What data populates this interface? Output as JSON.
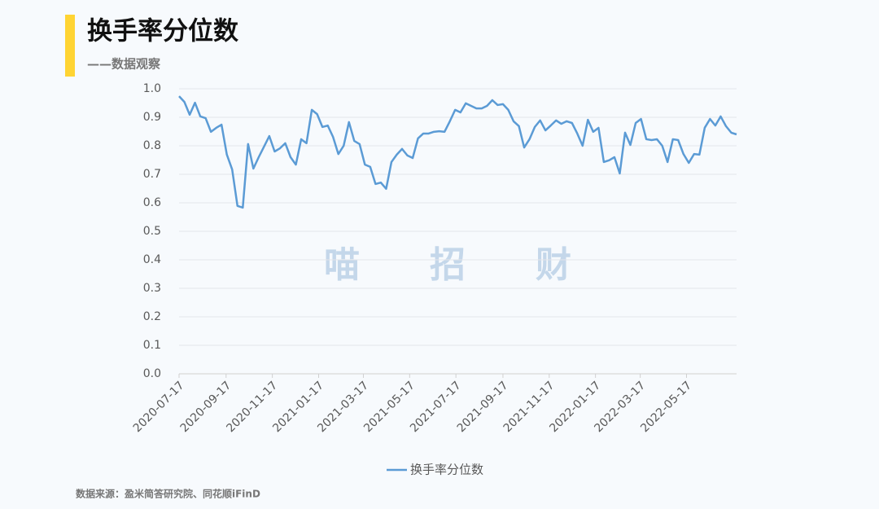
{
  "chart_data": {
    "type": "line",
    "title": "换手率分位数",
    "subtitle": "——数据观察",
    "source": "数据来源：盈米简答研究院、同花顺iFinD",
    "watermark": [
      "喵",
      "招",
      "财"
    ],
    "x": [
      "2020-07-17",
      "2020-07-24",
      "2020-07-31",
      "2020-08-07",
      "2020-08-14",
      "2020-08-21",
      "2020-08-28",
      "2020-09-04",
      "2020-09-11",
      "2020-09-18",
      "2020-09-25",
      "2020-10-02",
      "2020-10-09",
      "2020-10-16",
      "2020-10-23",
      "2020-10-30",
      "2020-11-06",
      "2020-11-13",
      "2020-11-20",
      "2020-11-27",
      "2020-12-04",
      "2020-12-11",
      "2020-12-18",
      "2020-12-25",
      "2021-01-01",
      "2021-01-08",
      "2021-01-15",
      "2021-01-22",
      "2021-01-29",
      "2021-02-05",
      "2021-02-12",
      "2021-02-19",
      "2021-02-26",
      "2021-03-05",
      "2021-03-12",
      "2021-03-19",
      "2021-03-26",
      "2021-04-02",
      "2021-04-09",
      "2021-04-16",
      "2021-04-23",
      "2021-04-30",
      "2021-05-07",
      "2021-05-14",
      "2021-05-21",
      "2021-05-28",
      "2021-06-04",
      "2021-06-11",
      "2021-06-18",
      "2021-06-25",
      "2021-07-02",
      "2021-07-09",
      "2021-07-16",
      "2021-07-23",
      "2021-07-30",
      "2021-08-06",
      "2021-08-13",
      "2021-08-20",
      "2021-08-27",
      "2021-09-03",
      "2021-09-10",
      "2021-09-17",
      "2021-09-24",
      "2021-10-01",
      "2021-10-08",
      "2021-10-15",
      "2021-10-22",
      "2021-10-29",
      "2021-11-05",
      "2021-11-12",
      "2021-11-19",
      "2021-11-26",
      "2021-12-03",
      "2021-12-10",
      "2021-12-17",
      "2021-12-24",
      "2021-12-31",
      "2022-01-07",
      "2022-01-14",
      "2022-01-21",
      "2022-01-28",
      "2022-02-04",
      "2022-02-11",
      "2022-02-18",
      "2022-02-25",
      "2022-03-04",
      "2022-03-11",
      "2022-03-18",
      "2022-03-25",
      "2022-04-01",
      "2022-04-08",
      "2022-04-15",
      "2022-04-22",
      "2022-04-29",
      "2022-05-06",
      "2022-05-13",
      "2022-05-20",
      "2022-05-27",
      "2022-06-03",
      "2022-06-10",
      "2022-06-17",
      "2022-06-24",
      "2022-07-01",
      "2022-07-08",
      "2022-07-15",
      "2022-07-22"
    ],
    "series": [
      {
        "name": "换手率分位数",
        "color": "#5b9bd5",
        "values": [
          0.974,
          0.954,
          0.909,
          0.951,
          0.903,
          0.897,
          0.849,
          0.863,
          0.874,
          0.769,
          0.717,
          0.589,
          0.583,
          0.806,
          0.72,
          0.76,
          0.797,
          0.834,
          0.78,
          0.791,
          0.809,
          0.76,
          0.734,
          0.823,
          0.809,
          0.926,
          0.911,
          0.866,
          0.871,
          0.831,
          0.771,
          0.8,
          0.883,
          0.817,
          0.806,
          0.734,
          0.726,
          0.666,
          0.671,
          0.649,
          0.743,
          0.769,
          0.789,
          0.766,
          0.757,
          0.826,
          0.843,
          0.843,
          0.849,
          0.851,
          0.849,
          0.886,
          0.926,
          0.917,
          0.949,
          0.94,
          0.931,
          0.931,
          0.94,
          0.96,
          0.943,
          0.946,
          0.926,
          0.886,
          0.869,
          0.794,
          0.823,
          0.866,
          0.889,
          0.854,
          0.871,
          0.889,
          0.877,
          0.886,
          0.88,
          0.843,
          0.8,
          0.891,
          0.849,
          0.863,
          0.743,
          0.749,
          0.76,
          0.703,
          0.846,
          0.803,
          0.88,
          0.894,
          0.823,
          0.82,
          0.823,
          0.8,
          0.743,
          0.823,
          0.82,
          0.771,
          0.74,
          0.771,
          0.769,
          0.863,
          0.894,
          0.871,
          0.903,
          0.869,
          0.846,
          0.84
        ]
      }
    ],
    "xlim": [
      "2020-07-17",
      "2022-07-22"
    ],
    "xticks": [
      "2020-07-17",
      "2020-09-17",
      "2020-11-17",
      "2021-01-17",
      "2021-03-17",
      "2021-05-17",
      "2021-07-17",
      "2021-09-17",
      "2021-11-17",
      "2022-01-17",
      "2022-03-17",
      "2022-05-17"
    ],
    "ylim": [
      0,
      1
    ],
    "yticks": [
      {
        "value": 0,
        "label": "0.0"
      },
      0.1,
      0.2,
      0.3,
      0.4,
      0.5,
      0.6,
      0.7,
      0.8,
      0.9,
      {
        "value": 1,
        "label": "1.0"
      }
    ],
    "grid": true,
    "legend": "bottom"
  }
}
